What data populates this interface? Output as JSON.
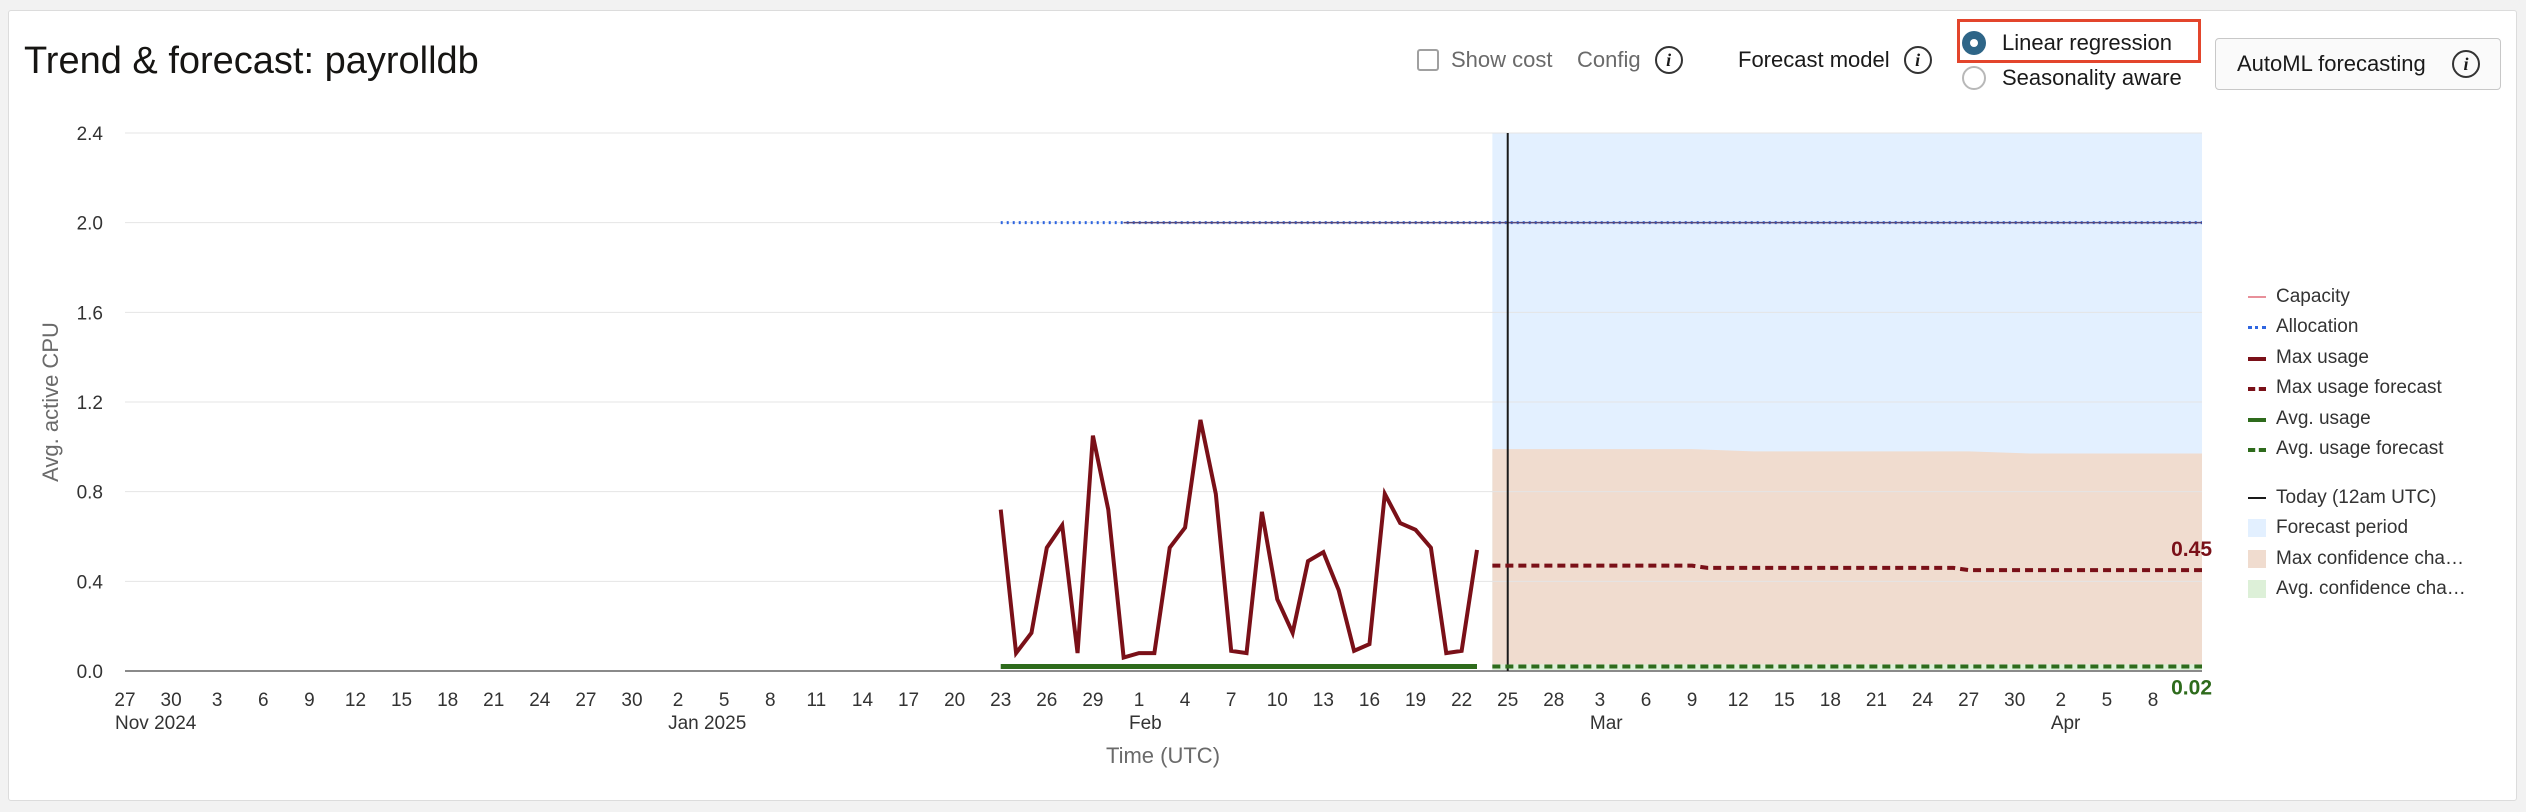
{
  "header": {
    "title": "Trend & forecast: payrolldb",
    "show_cost_label": "Show cost",
    "config_label": "Config",
    "forecast_model_label": "Forecast model",
    "radio_options": [
      {
        "label": "Linear regression",
        "selected": true
      },
      {
        "label": "Seasonality aware",
        "selected": false
      }
    ],
    "automl_button_label": "AutoML forecasting",
    "info_glyph": "i"
  },
  "colors": {
    "max_usage": "#7a1018",
    "avg_usage": "#2e6b1c",
    "allocation": "#2f66e0",
    "capacity": "#e8909a",
    "today": "#1a1a1a",
    "forecast_period": "#e3f0ff",
    "max_confidence": "#f0dccf",
    "avg_confidence": "#ddf0d8",
    "accent_radio": "#2e6587",
    "highlight_box": "#e3452c"
  },
  "chart_data": {
    "type": "line",
    "title": "",
    "ylabel": "Avg. active CPU",
    "xlabel": "Time (UTC)",
    "ylim": [
      0,
      2.4
    ],
    "yticks": [
      "0.0",
      "0.4",
      "0.8",
      "1.2",
      "1.6",
      "2.0",
      "2.4"
    ],
    "xlim": [
      "2024-11-27",
      "2025-04-10"
    ],
    "xticks": [
      {
        "date": "2024-11-27",
        "label": "27",
        "sub": "Nov 2024"
      },
      {
        "date": "2024-11-30",
        "label": "30"
      },
      {
        "date": "2024-12-03",
        "label": "3"
      },
      {
        "date": "2024-12-06",
        "label": "6"
      },
      {
        "date": "2024-12-09",
        "label": "9"
      },
      {
        "date": "2024-12-12",
        "label": "12"
      },
      {
        "date": "2024-12-15",
        "label": "15"
      },
      {
        "date": "2024-12-18",
        "label": "18"
      },
      {
        "date": "2024-12-21",
        "label": "21"
      },
      {
        "date": "2024-12-24",
        "label": "24"
      },
      {
        "date": "2024-12-27",
        "label": "27"
      },
      {
        "date": "2024-12-30",
        "label": "30"
      },
      {
        "date": "2025-01-02",
        "label": "2",
        "sub": "Jan 2025"
      },
      {
        "date": "2025-01-05",
        "label": "5"
      },
      {
        "date": "2025-01-08",
        "label": "8"
      },
      {
        "date": "2025-01-11",
        "label": "11"
      },
      {
        "date": "2025-01-14",
        "label": "14"
      },
      {
        "date": "2025-01-17",
        "label": "17"
      },
      {
        "date": "2025-01-20",
        "label": "20"
      },
      {
        "date": "2025-01-23",
        "label": "23"
      },
      {
        "date": "2025-01-26",
        "label": "26"
      },
      {
        "date": "2025-01-29",
        "label": "29"
      },
      {
        "date": "2025-02-01",
        "label": "1",
        "sub": "Feb"
      },
      {
        "date": "2025-02-04",
        "label": "4"
      },
      {
        "date": "2025-02-07",
        "label": "7"
      },
      {
        "date": "2025-02-10",
        "label": "10"
      },
      {
        "date": "2025-02-13",
        "label": "13"
      },
      {
        "date": "2025-02-16",
        "label": "16"
      },
      {
        "date": "2025-02-19",
        "label": "19"
      },
      {
        "date": "2025-02-22",
        "label": "22"
      },
      {
        "date": "2025-02-25",
        "label": "25"
      },
      {
        "date": "2025-02-28",
        "label": "28"
      },
      {
        "date": "2025-03-03",
        "label": "3",
        "sub": "Mar"
      },
      {
        "date": "2025-03-06",
        "label": "6"
      },
      {
        "date": "2025-03-09",
        "label": "9"
      },
      {
        "date": "2025-03-12",
        "label": "12"
      },
      {
        "date": "2025-03-15",
        "label": "15"
      },
      {
        "date": "2025-03-18",
        "label": "18"
      },
      {
        "date": "2025-03-21",
        "label": "21"
      },
      {
        "date": "2025-03-24",
        "label": "24"
      },
      {
        "date": "2025-03-27",
        "label": "27"
      },
      {
        "date": "2025-03-30",
        "label": "30"
      },
      {
        "date": "2025-04-02",
        "label": "2",
        "sub": "Apr"
      },
      {
        "date": "2025-04-05",
        "label": "5"
      },
      {
        "date": "2025-04-08",
        "label": "8"
      }
    ],
    "forecast_period": [
      "2025-02-24",
      "2025-04-10"
    ],
    "today": "2025-02-25",
    "series": [
      {
        "name": "Capacity",
        "style": "thin",
        "points": [
          [
            "2025-01-31",
            2.0
          ],
          [
            "2025-04-10",
            2.0
          ]
        ]
      },
      {
        "name": "Allocation",
        "style": "dotted",
        "points": [
          [
            "2025-01-23",
            2.0
          ],
          [
            "2025-04-10",
            2.0
          ]
        ]
      },
      {
        "name": "Max usage",
        "style": "solid",
        "points": [
          [
            "2025-01-23",
            0.72
          ],
          [
            "2025-01-24",
            0.08
          ],
          [
            "2025-01-25",
            0.17
          ],
          [
            "2025-01-26",
            0.55
          ],
          [
            "2025-01-27",
            0.65
          ],
          [
            "2025-01-28",
            0.08
          ],
          [
            "2025-01-29",
            1.05
          ],
          [
            "2025-01-30",
            0.72
          ],
          [
            "2025-01-31",
            0.06
          ],
          [
            "2025-02-01",
            0.08
          ],
          [
            "2025-02-02",
            0.08
          ],
          [
            "2025-02-03",
            0.55
          ],
          [
            "2025-02-04",
            0.64
          ],
          [
            "2025-02-05",
            1.12
          ],
          [
            "2025-02-06",
            0.79
          ],
          [
            "2025-02-07",
            0.09
          ],
          [
            "2025-02-08",
            0.08
          ],
          [
            "2025-02-09",
            0.71
          ],
          [
            "2025-02-10",
            0.32
          ],
          [
            "2025-02-11",
            0.17
          ],
          [
            "2025-02-12",
            0.49
          ],
          [
            "2025-02-13",
            0.53
          ],
          [
            "2025-02-14",
            0.36
          ],
          [
            "2025-02-15",
            0.09
          ],
          [
            "2025-02-16",
            0.12
          ],
          [
            "2025-02-17",
            0.79
          ],
          [
            "2025-02-18",
            0.66
          ],
          [
            "2025-02-19",
            0.63
          ],
          [
            "2025-02-20",
            0.55
          ],
          [
            "2025-02-21",
            0.08
          ],
          [
            "2025-02-22",
            0.09
          ],
          [
            "2025-02-23",
            0.54
          ]
        ]
      },
      {
        "name": "Max usage forecast",
        "style": "dashed",
        "points": [
          [
            "2025-02-24",
            0.47
          ],
          [
            "2025-03-09",
            0.47
          ],
          [
            "2025-03-10",
            0.46
          ],
          [
            "2025-03-26",
            0.46
          ],
          [
            "2025-03-27",
            0.45
          ],
          [
            "2025-04-10",
            0.45
          ]
        ]
      },
      {
        "name": "Avg. usage",
        "style": "solid-thick",
        "points": [
          [
            "2025-01-23",
            0.02
          ],
          [
            "2025-02-23",
            0.02
          ]
        ]
      },
      {
        "name": "Avg. usage forecast",
        "style": "dashed",
        "points": [
          [
            "2025-02-24",
            0.02
          ],
          [
            "2025-04-10",
            0.02
          ]
        ]
      }
    ],
    "max_confidence_band": [
      [
        "2025-02-24",
        0.99
      ],
      [
        "2025-03-09",
        0.99
      ],
      [
        "2025-03-13",
        0.98
      ],
      [
        "2025-03-27",
        0.98
      ],
      [
        "2025-03-31",
        0.97
      ],
      [
        "2025-04-10",
        0.97
      ]
    ],
    "avg_confidence_band": [
      [
        "2025-02-24",
        0.03
      ],
      [
        "2025-04-10",
        0.03
      ]
    ],
    "end_labels": [
      {
        "series": "Max usage forecast",
        "text": "0.45"
      },
      {
        "series": "Avg. usage forecast",
        "text": "0.02"
      }
    ],
    "legend_position": "right",
    "legend": [
      {
        "label": "Capacity",
        "kind": "line-thin",
        "color": "#e8909a"
      },
      {
        "label": "Allocation",
        "kind": "line-dotted",
        "color": "#2f66e0"
      },
      {
        "label": "Max usage",
        "kind": "line-solid",
        "color": "#7a1018"
      },
      {
        "label": "Max usage forecast",
        "kind": "line-dashed",
        "color": "#7a1018"
      },
      {
        "label": "Avg. usage",
        "kind": "line-solid",
        "color": "#2e6b1c"
      },
      {
        "label": "Avg. usage forecast",
        "kind": "line-dashed",
        "color": "#2e6b1c"
      },
      {
        "label": "Today (12am UTC)",
        "kind": "line-thin",
        "color": "#1a1a1a"
      },
      {
        "label": "Forecast period",
        "kind": "box",
        "color": "#e3f0ff"
      },
      {
        "label": "Max confidence cha…",
        "kind": "box",
        "color": "#f0dccf"
      },
      {
        "label": "Avg. confidence cha…",
        "kind": "box",
        "color": "#ddf0d8"
      }
    ],
    "grid": true
  }
}
